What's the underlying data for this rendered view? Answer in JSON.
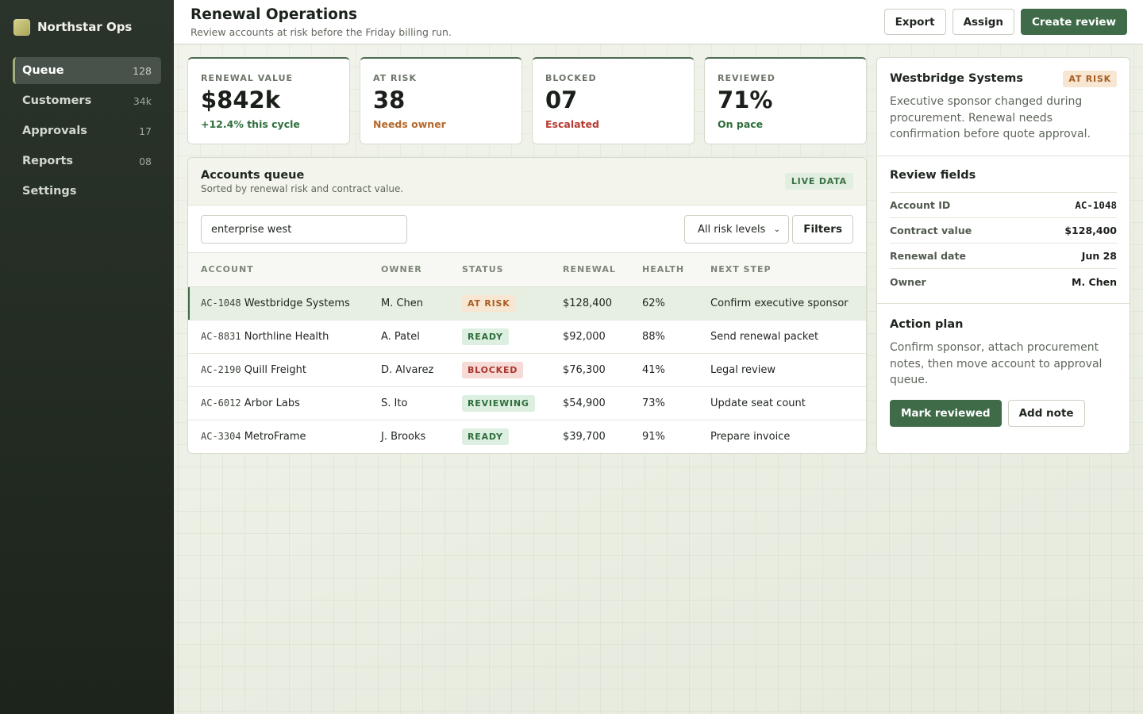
{
  "app": {
    "name": "Northstar Ops"
  },
  "nav": [
    {
      "label": "Queue",
      "count": "128"
    },
    {
      "label": "Customers",
      "count": "34k"
    },
    {
      "label": "Approvals",
      "count": "17"
    },
    {
      "label": "Reports",
      "count": "08"
    },
    {
      "label": "Settings",
      "count": ""
    }
  ],
  "header": {
    "title": "Renewal Operations",
    "subtitle": "Review accounts at risk before the Friday billing run.",
    "actions": {
      "export": "Export",
      "assign": "Assign",
      "create": "Create review"
    }
  },
  "stats": [
    {
      "label": "RENEWAL VALUE",
      "value": "$842k",
      "note": "+12.4% this cycle",
      "note_color": "#2f6e3c"
    },
    {
      "label": "AT RISK",
      "value": "38",
      "note": "Needs owner",
      "note_color": "#b4672a"
    },
    {
      "label": "BLOCKED",
      "value": "07",
      "note": "Escalated",
      "note_color": "#b53a31"
    },
    {
      "label": "REVIEWED",
      "value": "71%",
      "note": "On pace",
      "note_color": "#2f6e3c"
    }
  ],
  "queue": {
    "title": "Accounts queue",
    "subtitle": "Sorted by renewal risk and contract value.",
    "badge": "LIVE DATA",
    "search": {
      "value": "enterprise west",
      "placeholder": ""
    },
    "risk_filter": "All risk levels",
    "filters_label": "Filters",
    "columns": [
      "ACCOUNT",
      "OWNER",
      "STATUS",
      "RENEWAL",
      "HEALTH",
      "NEXT STEP"
    ],
    "rows": [
      {
        "id": "AC-1048",
        "name": "Westbridge Systems",
        "owner": "M. Chen",
        "status": "AT RISK",
        "renewal": "$128,400",
        "health": "62%",
        "next": "Confirm executive sponsor"
      },
      {
        "id": "AC-8831",
        "name": "Northline Health",
        "owner": "A. Patel",
        "status": "READY",
        "renewal": "$92,000",
        "health": "88%",
        "next": "Send renewal packet"
      },
      {
        "id": "AC-2190",
        "name": "Quill Freight",
        "owner": "D. Alvarez",
        "status": "BLOCKED",
        "renewal": "$76,300",
        "health": "41%",
        "next": "Legal review"
      },
      {
        "id": "AC-6012",
        "name": "Arbor Labs",
        "owner": "S. Ito",
        "status": "REVIEWING",
        "renewal": "$54,900",
        "health": "73%",
        "next": "Update seat count"
      },
      {
        "id": "AC-3304",
        "name": "MetroFrame",
        "owner": "J. Brooks",
        "status": "READY",
        "renewal": "$39,700",
        "health": "91%",
        "next": "Prepare invoice"
      }
    ]
  },
  "detail": {
    "name": "Westbridge Systems",
    "badge": "AT RISK",
    "description": "Executive sponsor changed during procurement. Renewal needs confirmation before quote approval.",
    "fields_title": "Review fields",
    "fields": [
      {
        "label": "Account ID",
        "value": "AC-1048"
      },
      {
        "label": "Contract value",
        "value": "$128,400"
      },
      {
        "label": "Renewal date",
        "value": "Jun 28"
      },
      {
        "label": "Owner",
        "value": "M. Chen"
      }
    ],
    "plan_title": "Action plan",
    "plan_text": "Confirm sponsor, attach procurement notes, then move account to approval queue.",
    "actions": {
      "primary": "Mark reviewed",
      "secondary": "Add note"
    }
  }
}
